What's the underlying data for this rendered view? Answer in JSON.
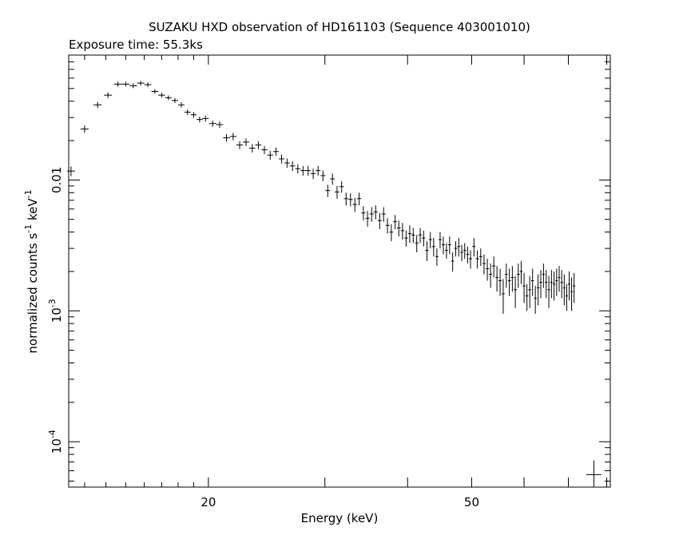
{
  "chart_data": {
    "type": "scatter",
    "title": "SUZAKU HXD observation of HD161103 (Sequence 403001010)",
    "subtitle": "Exposure time: 55.3ks",
    "xlabel": "Energy (keV)",
    "ylabel": {
      "prefix": "normalized counts s",
      "sup1": "-1",
      "mid": " keV",
      "sup2": "-1"
    },
    "x_scale": "log",
    "y_scale": "log",
    "xlim": [
      12.3,
      81
    ],
    "ylim": [
      4.5e-05,
      0.09
    ],
    "x_tick_labels": [
      {
        "value": 20,
        "label": "20"
      },
      {
        "value": 50,
        "label": "50"
      }
    ],
    "y_tick_labels": [
      {
        "value": 0.01,
        "label": "0.01",
        "mantissa": "",
        "exponent": ""
      },
      {
        "value": 0.001,
        "label": "",
        "mantissa": "10",
        "exponent": "-3"
      },
      {
        "value": 0.0001,
        "label": "",
        "mantissa": "10",
        "exponent": "-4"
      }
    ],
    "grid": false,
    "series": [
      {
        "x": [
          12.4,
          13.0,
          13.6,
          14.1,
          14.6,
          15.0,
          15.4,
          15.8,
          16.2,
          16.6,
          17.0,
          17.4,
          17.8,
          18.2,
          18.6,
          19.0,
          19.4,
          19.8,
          20.3,
          20.8,
          21.3,
          21.8,
          22.3,
          22.8,
          23.3,
          23.8,
          24.3,
          24.8,
          25.3,
          25.8,
          26.3,
          26.8,
          27.3,
          27.8,
          28.3,
          28.8,
          29.3,
          29.8,
          30.3,
          30.8,
          31.3,
          31.8,
          32.3,
          32.8,
          33.3,
          33.8,
          34.3,
          34.8,
          35.3,
          35.8,
          36.3,
          36.8,
          37.3,
          37.8,
          38.3,
          38.8,
          39.3,
          39.8,
          40.3,
          40.8,
          41.3,
          41.8,
          42.3,
          42.8,
          43.3,
          43.8,
          44.3,
          44.8,
          45.3,
          45.8,
          46.3,
          46.8,
          47.3,
          47.8,
          48.3,
          48.8,
          49.3,
          49.8,
          50.4,
          51.0,
          51.6,
          52.2,
          52.8,
          53.4,
          54.0,
          54.6,
          55.2,
          55.8,
          56.4,
          57.0,
          57.6,
          58.2,
          58.8,
          59.4,
          60.0,
          60.6,
          61.2,
          61.8,
          62.4,
          63.0,
          63.6,
          64.2,
          64.8,
          65.4,
          66.0,
          66.6,
          67.2,
          67.8,
          68.4,
          69.0,
          69.6,
          70.2,
          70.8,
          71.4
        ],
        "y": [
          0.0117,
          0.0245,
          0.0375,
          0.0445,
          0.054,
          0.054,
          0.0525,
          0.055,
          0.0535,
          0.0475,
          0.0445,
          0.0425,
          0.0405,
          0.0375,
          0.033,
          0.0315,
          0.029,
          0.0295,
          0.027,
          0.0265,
          0.021,
          0.0215,
          0.0185,
          0.0195,
          0.0175,
          0.0185,
          0.017,
          0.0155,
          0.0165,
          0.0145,
          0.0135,
          0.0128,
          0.0122,
          0.0118,
          0.0118,
          0.0112,
          0.0118,
          0.0108,
          0.0083,
          0.0102,
          0.0081,
          0.0089,
          0.0072,
          0.0071,
          0.0065,
          0.0072,
          0.0056,
          0.0051,
          0.0055,
          0.0057,
          0.0049,
          0.0055,
          0.0045,
          0.004,
          0.0048,
          0.0043,
          0.0041,
          0.0036,
          0.0039,
          0.0038,
          0.0033,
          0.0038,
          0.0036,
          0.0029,
          0.0035,
          0.0031,
          0.0026,
          0.0035,
          0.0032,
          0.0029,
          0.0032,
          0.0024,
          0.003,
          0.0031,
          0.0028,
          0.0029,
          0.0027,
          0.0025,
          0.0031,
          0.0025,
          0.0026,
          0.0023,
          0.0021,
          0.0019,
          0.0022,
          0.0018,
          0.0017,
          0.00135,
          0.0019,
          0.0017,
          0.0018,
          0.00145,
          0.0019,
          0.002,
          0.00155,
          0.0013,
          0.00145,
          0.0017,
          0.00125,
          0.0015,
          0.00165,
          0.0019,
          0.00165,
          0.00145,
          0.00165,
          0.0016,
          0.0017,
          0.0018,
          0.00165,
          0.0015,
          0.0013,
          0.0016,
          0.0014,
          0.00155
        ],
        "dy": [
          0.001,
          0.0016,
          0.002,
          0.0022,
          0.0024,
          0.0022,
          0.0022,
          0.0022,
          0.0022,
          0.002,
          0.0019,
          0.0018,
          0.0017,
          0.0017,
          0.0016,
          0.0016,
          0.0015,
          0.0015,
          0.0015,
          0.0015,
          0.0014,
          0.0014,
          0.0013,
          0.0013,
          0.0013,
          0.0013,
          0.0012,
          0.0012,
          0.0012,
          0.0011,
          0.0011,
          0.0011,
          0.001,
          0.001,
          0.001,
          0.001,
          0.001,
          0.001,
          0.0009,
          0.001,
          0.0009,
          0.0009,
          0.0008,
          0.0008,
          0.0008,
          0.0008,
          0.0007,
          0.0007,
          0.0007,
          0.0007,
          0.0007,
          0.0007,
          0.0006,
          0.0006,
          0.0006,
          0.0006,
          0.0006,
          0.0005,
          0.0006,
          0.0005,
          0.0005,
          0.0005,
          0.0005,
          0.0005,
          0.0005,
          0.0005,
          0.0004,
          0.0005,
          0.0005,
          0.0004,
          0.0005,
          0.0004,
          0.0004,
          0.0005,
          0.0004,
          0.0004,
          0.0004,
          0.0004,
          0.0005,
          0.0004,
          0.0004,
          0.0004,
          0.0004,
          0.0004,
          0.0004,
          0.0004,
          0.0004,
          0.0004,
          0.0004,
          0.0004,
          0.0004,
          0.0004,
          0.0004,
          0.0004,
          0.0004,
          0.0003,
          0.0004,
          0.0004,
          0.0003,
          0.0004,
          0.0004,
          0.0004,
          0.0004,
          0.0004,
          0.0004,
          0.0004,
          0.0004,
          0.0004,
          0.0004,
          0.0004,
          0.0003,
          0.0004,
          0.0004,
          0.0004
        ]
      }
    ],
    "marker": {
      "x": 76.5,
      "xerr": 2.0,
      "y": 5.6e-05,
      "ylow": 4.5e-05,
      "yhigh": 7.2e-05
    }
  }
}
